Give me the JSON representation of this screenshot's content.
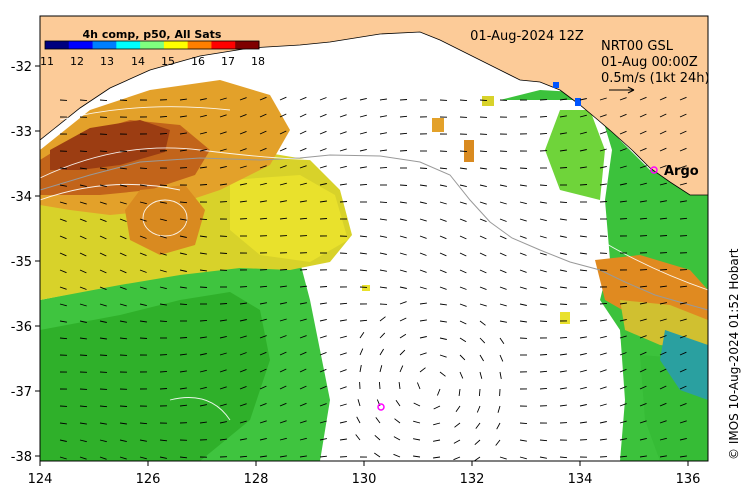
{
  "map": {
    "date_label": "01-Aug-2024 12Z",
    "colorbar": {
      "title": "4h comp, p50, All Sats",
      "ticks": [
        "11",
        "12",
        "13",
        "14",
        "15",
        "16",
        "17",
        "18"
      ],
      "range": [
        11,
        18
      ],
      "colors": [
        "#00007f",
        "#0000ff",
        "#007fff",
        "#00ffff",
        "#7fff7f",
        "#ffff00",
        "#ff7f00",
        "#ff0000",
        "#7f0000"
      ]
    },
    "current_info": {
      "line1": "NRT00 GSL",
      "line2": "01-Aug 00:00Z",
      "line3": "0.5m/s (1kt 24h)"
    },
    "argo_label": "Argo",
    "x_ticks": [
      "124",
      "126",
      "128",
      "130",
      "132",
      "134",
      "136"
    ],
    "y_ticks": [
      "-32",
      "-33",
      "-34",
      "-35",
      "-36",
      "-37",
      "-38"
    ],
    "credit": "© IMOS 10-Aug-2024 01:52 Hobart",
    "land_color": "#fccb98",
    "marker_color": "#ff00ff"
  }
}
